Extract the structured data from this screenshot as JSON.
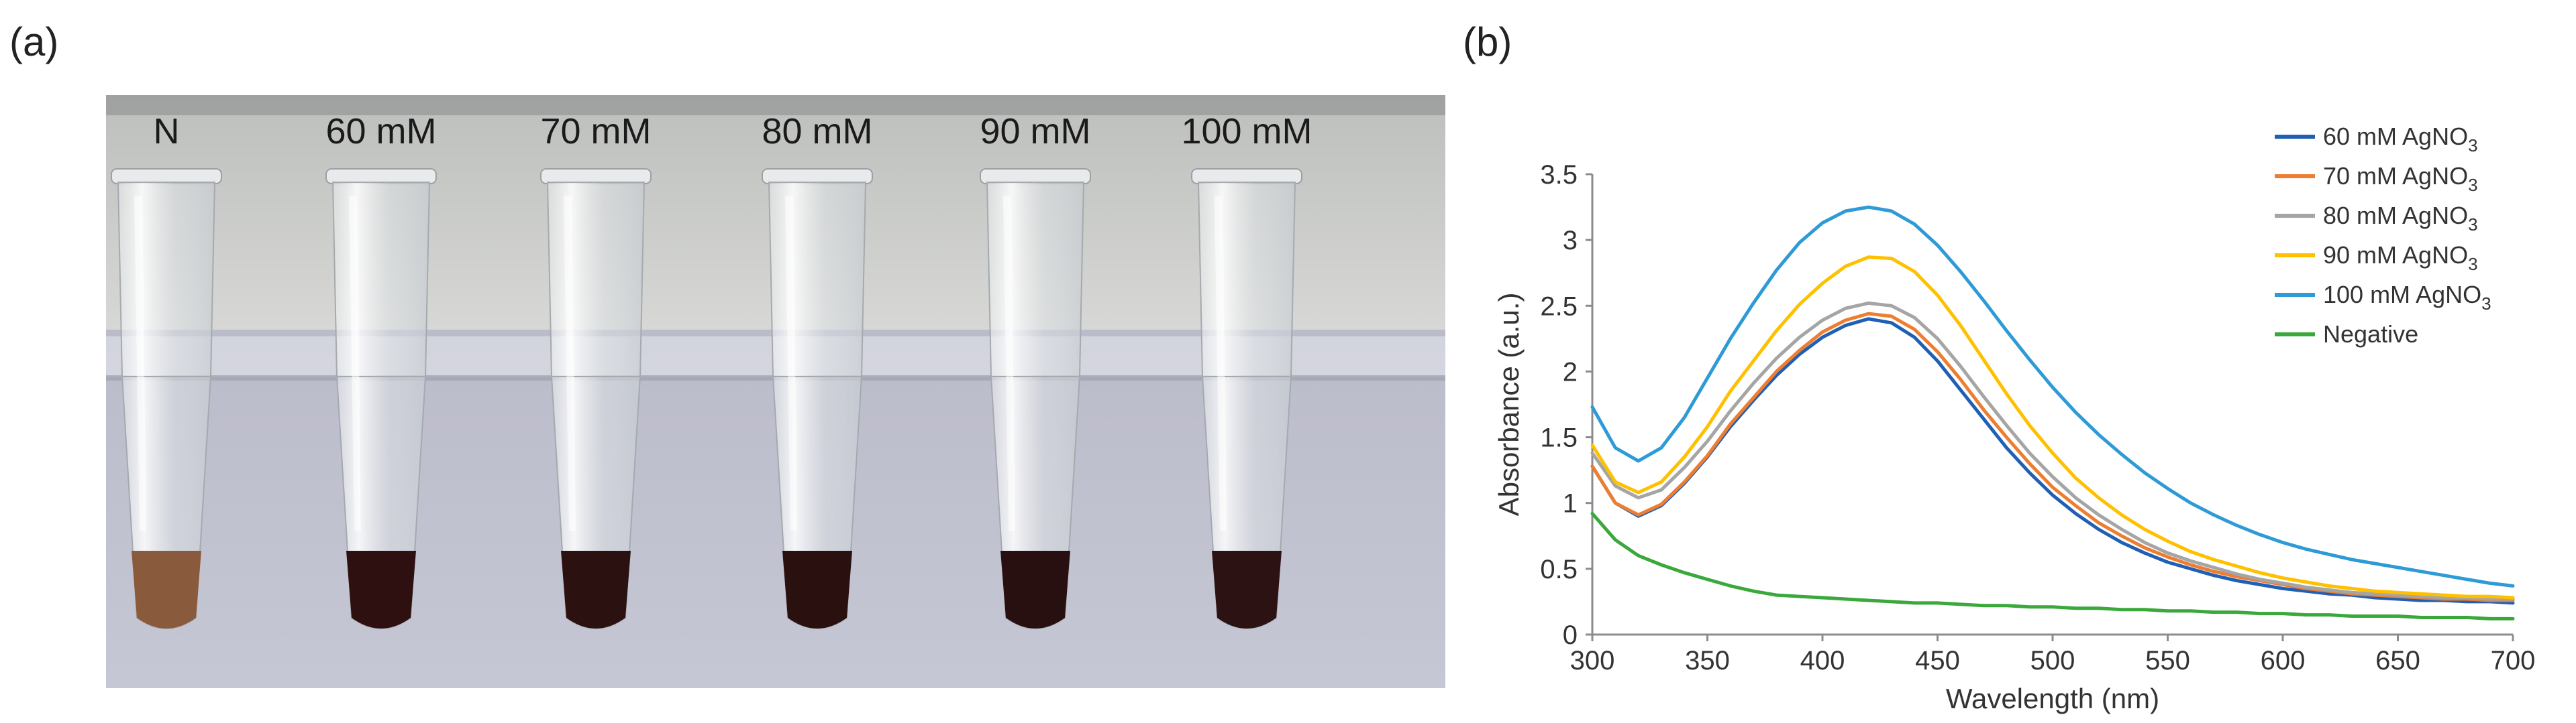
{
  "panel_a": {
    "label": "(a)",
    "tubes": [
      {
        "label": "N",
        "liquid": "#8a5a3c"
      },
      {
        "label": "60 mM",
        "liquid": "#2e1010"
      },
      {
        "label": "70 mM",
        "liquid": "#2c1111"
      },
      {
        "label": "80 mM",
        "liquid": "#2b1010"
      },
      {
        "label": "90 mM",
        "liquid": "#291010"
      },
      {
        "label": "100 mM",
        "liquid": "#2c1212"
      }
    ]
  },
  "panel_b": {
    "label": "(b)"
  },
  "chart_data": {
    "type": "line",
    "title": "",
    "xlabel": "Wavelength (nm)",
    "ylabel": "Absorbance (a.u.)",
    "xlim": [
      300,
      700
    ],
    "ylim": [
      0,
      3.5
    ],
    "xticks": [
      300,
      350,
      400,
      450,
      500,
      550,
      600,
      650,
      700
    ],
    "yticks": [
      0,
      0.5,
      1,
      1.5,
      2,
      2.5,
      3,
      3.5
    ],
    "x": [
      300,
      310,
      320,
      330,
      340,
      350,
      360,
      370,
      380,
      390,
      400,
      410,
      420,
      430,
      440,
      450,
      460,
      470,
      480,
      490,
      500,
      510,
      520,
      530,
      540,
      550,
      560,
      570,
      580,
      590,
      600,
      610,
      620,
      630,
      640,
      650,
      660,
      670,
      680,
      690,
      700
    ],
    "legend_position": "top-right",
    "series": [
      {
        "name": "60 mM AgNO",
        "sub": "3",
        "color": "#1f5fb4",
        "values": [
          1.28,
          1.0,
          0.9,
          0.98,
          1.15,
          1.35,
          1.58,
          1.78,
          1.97,
          2.13,
          2.26,
          2.35,
          2.4,
          2.37,
          2.26,
          2.08,
          1.86,
          1.64,
          1.42,
          1.23,
          1.06,
          0.92,
          0.8,
          0.7,
          0.62,
          0.55,
          0.5,
          0.45,
          0.41,
          0.38,
          0.35,
          0.33,
          0.31,
          0.3,
          0.28,
          0.27,
          0.26,
          0.26,
          0.25,
          0.25,
          0.24
        ]
      },
      {
        "name": "70 mM AgNO",
        "sub": "3",
        "color": "#ed7d31",
        "values": [
          1.28,
          1.0,
          0.91,
          0.99,
          1.16,
          1.36,
          1.6,
          1.8,
          2.0,
          2.16,
          2.3,
          2.39,
          2.44,
          2.42,
          2.32,
          2.15,
          1.94,
          1.71,
          1.5,
          1.3,
          1.12,
          0.98,
          0.85,
          0.75,
          0.66,
          0.59,
          0.53,
          0.48,
          0.44,
          0.41,
          0.38,
          0.35,
          0.33,
          0.31,
          0.3,
          0.29,
          0.28,
          0.27,
          0.27,
          0.26,
          0.26
        ]
      },
      {
        "name": "80 mM AgNO",
        "sub": "3",
        "color": "#a5a5a5",
        "values": [
          1.38,
          1.13,
          1.04,
          1.1,
          1.27,
          1.47,
          1.7,
          1.91,
          2.1,
          2.26,
          2.39,
          2.48,
          2.52,
          2.5,
          2.41,
          2.25,
          2.04,
          1.81,
          1.59,
          1.38,
          1.2,
          1.04,
          0.91,
          0.8,
          0.7,
          0.62,
          0.56,
          0.51,
          0.46,
          0.42,
          0.39,
          0.36,
          0.34,
          0.32,
          0.31,
          0.3,
          0.29,
          0.28,
          0.28,
          0.27,
          0.27
        ]
      },
      {
        "name": "90 mM AgNO",
        "sub": "3",
        "color": "#ffc000",
        "values": [
          1.44,
          1.16,
          1.08,
          1.16,
          1.35,
          1.58,
          1.85,
          2.08,
          2.31,
          2.51,
          2.67,
          2.8,
          2.87,
          2.86,
          2.76,
          2.58,
          2.35,
          2.09,
          1.83,
          1.59,
          1.38,
          1.19,
          1.04,
          0.91,
          0.8,
          0.71,
          0.63,
          0.57,
          0.52,
          0.47,
          0.43,
          0.4,
          0.37,
          0.35,
          0.33,
          0.32,
          0.31,
          0.3,
          0.29,
          0.29,
          0.28
        ]
      },
      {
        "name": "100 mM AgNO",
        "sub": "3",
        "color": "#2e9ad6",
        "values": [
          1.73,
          1.42,
          1.32,
          1.42,
          1.65,
          1.95,
          2.25,
          2.52,
          2.77,
          2.98,
          3.13,
          3.22,
          3.25,
          3.22,
          3.12,
          2.96,
          2.76,
          2.54,
          2.31,
          2.09,
          1.88,
          1.69,
          1.52,
          1.37,
          1.23,
          1.11,
          1.0,
          0.91,
          0.83,
          0.76,
          0.7,
          0.65,
          0.61,
          0.57,
          0.54,
          0.51,
          0.48,
          0.45,
          0.42,
          0.39,
          0.37
        ]
      },
      {
        "name": "Negative",
        "sub": "",
        "color": "#3aa83a",
        "values": [
          0.92,
          0.72,
          0.6,
          0.53,
          0.47,
          0.42,
          0.37,
          0.33,
          0.3,
          0.29,
          0.28,
          0.27,
          0.26,
          0.25,
          0.24,
          0.24,
          0.23,
          0.22,
          0.22,
          0.21,
          0.21,
          0.2,
          0.2,
          0.19,
          0.19,
          0.18,
          0.18,
          0.17,
          0.17,
          0.16,
          0.16,
          0.15,
          0.15,
          0.14,
          0.14,
          0.14,
          0.13,
          0.13,
          0.13,
          0.12,
          0.12
        ]
      }
    ]
  }
}
